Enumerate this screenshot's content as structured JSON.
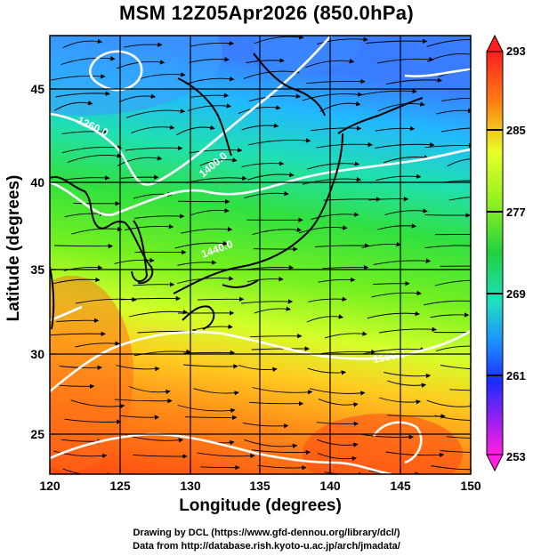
{
  "title": "MSM 12Z05Apr2026 (850.0hPa)",
  "x_axis": {
    "label": "Longitude (degrees)",
    "ticks": [
      "120",
      "125",
      "130",
      "135",
      "140",
      "145",
      "150"
    ],
    "range": [
      120,
      150
    ]
  },
  "y_axis": {
    "label": "Latitude  (degrees)",
    "ticks": [
      "25",
      "30",
      "35",
      "40",
      "45"
    ],
    "range": [
      22.4,
      47.6
    ]
  },
  "colorbar": {
    "labels": [
      "293",
      "285",
      "277",
      "269",
      "261",
      "253"
    ],
    "range": [
      253,
      293
    ],
    "units_hint": "K"
  },
  "contours": {
    "labels": [
      "1260.0",
      "1400.0",
      "1440.0",
      "1500.0"
    ]
  },
  "credits": [
    "Drawing by DCL (https://www.gfd-dennou.org/library/dcl/)",
    "Data from http://database.rish.kyoto-u.ac.jp/arch/jmadata/"
  ],
  "map_colors": {
    "warm": "#ff6020",
    "mid": "#7fff00",
    "cold": "#20c8ff",
    "contour": "#ffffff",
    "coast": "#000000"
  }
}
